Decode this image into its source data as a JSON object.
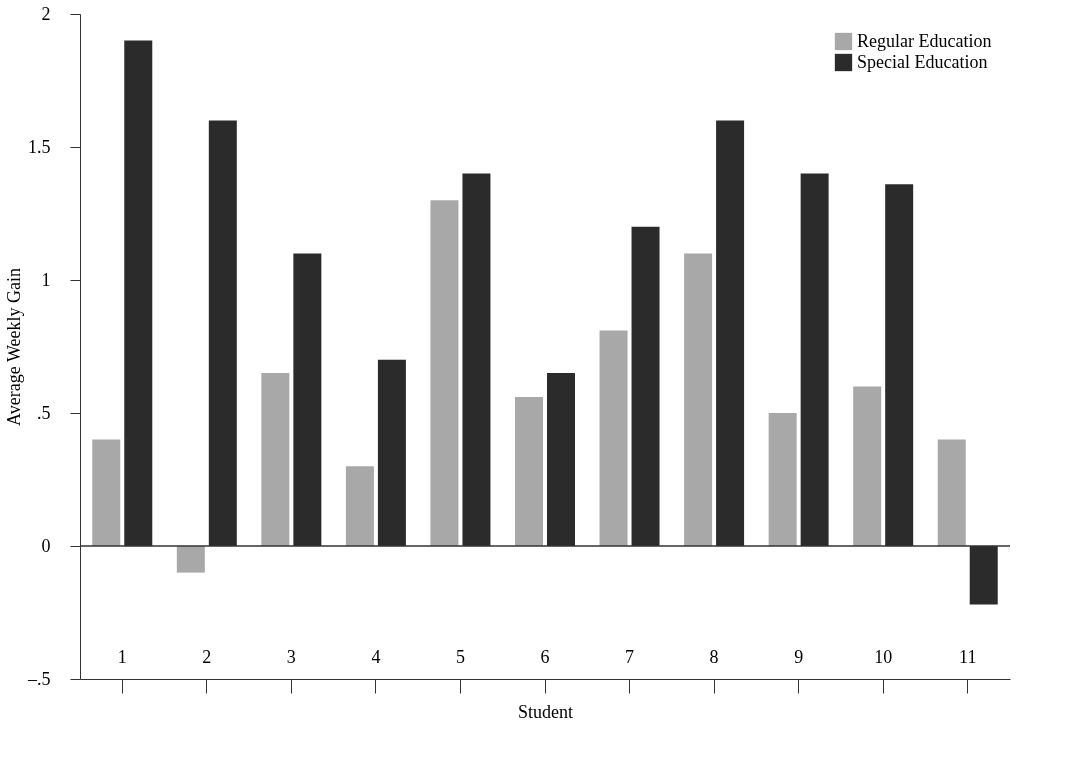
{
  "chart_data": {
    "type": "bar",
    "xlabel": "Student",
    "ylabel": "Average Weekly Gain",
    "categories": [
      "1",
      "2",
      "3",
      "4",
      "5",
      "6",
      "7",
      "8",
      "9",
      "10",
      "11"
    ],
    "series": [
      {
        "name": "Regular Education",
        "color": "#a8a8a8",
        "values": [
          0.4,
          -0.1,
          0.65,
          0.3,
          1.3,
          0.56,
          0.81,
          1.1,
          0.5,
          0.6,
          0.4
        ]
      },
      {
        "name": "Special Education",
        "color": "#2b2b2b",
        "values": [
          1.9,
          1.6,
          1.1,
          0.7,
          1.4,
          0.65,
          1.2,
          1.6,
          1.4,
          1.36,
          -0.22
        ]
      }
    ],
    "ylim": [
      -0.5,
      2
    ],
    "yticks": [
      {
        "value": -0.5,
        "label": "–.5"
      },
      0,
      {
        "value": 0.5,
        "label": ".5"
      },
      1,
      1.5,
      2
    ],
    "ref_lines": [
      {
        "axis": "y",
        "value": 0
      }
    ],
    "grid": false,
    "legend": "top right"
  }
}
